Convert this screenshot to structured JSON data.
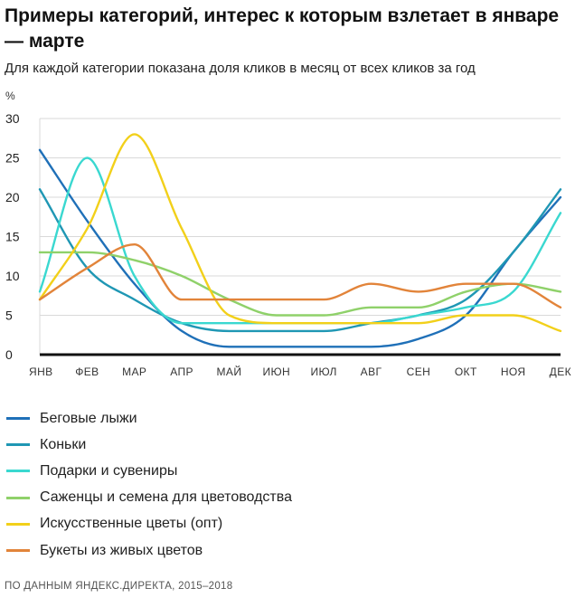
{
  "header": {
    "title": "Примеры категорий, интерес к которым взлетает в январе — марте",
    "subtitle": "Для каждой категории показана доля кликов в месяц от всех кликов за год"
  },
  "footer": {
    "source": "ПО ДАННЫМ ЯНДЕКС.ДИРЕКТА, 2015–2018"
  },
  "chart_data": {
    "type": "line",
    "ylabel": "%",
    "xlabel": "",
    "ylim": [
      0,
      30
    ],
    "yticks": [
      0,
      5,
      10,
      15,
      20,
      25,
      30
    ],
    "grid": true,
    "legend_position": "bottom",
    "categories": [
      "ЯНВ",
      "ФЕВ",
      "МАР",
      "АПР",
      "МАЙ",
      "ИЮН",
      "ИЮЛ",
      "АВГ",
      "СЕН",
      "ОКТ",
      "НОЯ",
      "ДЕК"
    ],
    "series": [
      {
        "name": "Беговые лыжи",
        "color": "#1f70b8",
        "values": [
          26,
          17,
          9,
          3,
          1,
          1,
          1,
          1,
          2,
          5,
          13,
          20
        ]
      },
      {
        "name": "Коньки",
        "color": "#1f97b4",
        "values": [
          21,
          11,
          7,
          4,
          3,
          3,
          3,
          4,
          5,
          7,
          13,
          21
        ]
      },
      {
        "name": "Подарки и сувениры",
        "color": "#3ad8d0",
        "values": [
          8,
          25,
          10,
          4,
          4,
          4,
          4,
          4,
          5,
          6,
          8,
          18
        ]
      },
      {
        "name": "Саженцы и семена для цветоводства",
        "color": "#8fd16a",
        "values": [
          13,
          13,
          12,
          10,
          7,
          5,
          5,
          6,
          6,
          8,
          9,
          8
        ]
      },
      {
        "name": "Искусственные цветы (опт)",
        "color": "#f2d01a",
        "values": [
          7,
          16,
          28,
          16,
          5,
          4,
          4,
          4,
          4,
          5,
          5,
          3
        ]
      },
      {
        "name": "Букеты из живых цветов",
        "color": "#e2843a",
        "values": [
          7,
          11,
          14,
          7,
          7,
          7,
          7,
          9,
          8,
          9,
          9,
          6
        ]
      }
    ]
  }
}
